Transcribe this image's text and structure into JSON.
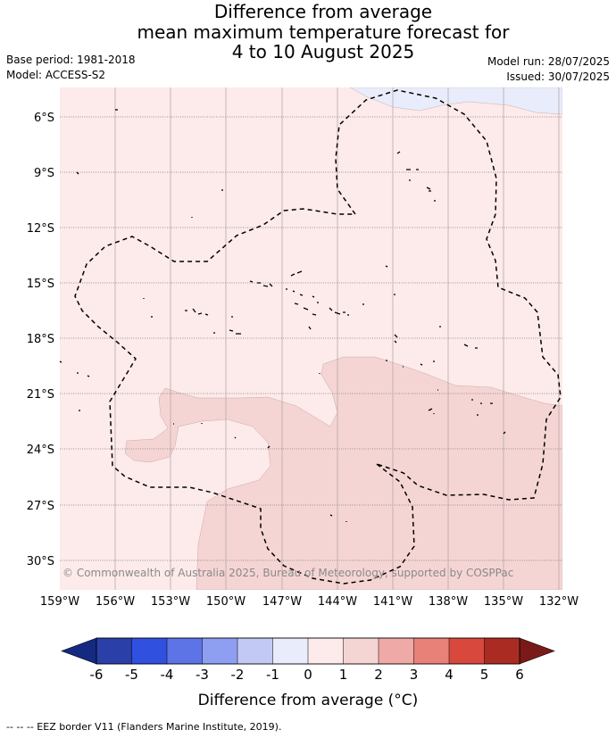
{
  "title": {
    "line1": "Difference from average",
    "line2": "mean maximum temperature forecast for",
    "line3": "4 to 10 August 2025"
  },
  "meta": {
    "base_period": "Base period: 1981-2018",
    "model": "Model: ACCESS-S2",
    "model_run": "Model run: 28/07/2025",
    "issued": "Issued: 30/07/2025"
  },
  "map": {
    "latitude_labels": [
      "6°S",
      "9°S",
      "12°S",
      "15°S",
      "18°S",
      "21°S",
      "24°S",
      "27°S",
      "30°S"
    ],
    "longitude_labels": [
      "159°W",
      "156°W",
      "153°W",
      "150°W",
      "147°W",
      "144°W",
      "141°W",
      "138°W",
      "135°W",
      "132°W"
    ],
    "copyright": "© Commonwealth of Australia 2025, Bureau of Meteorology, supported by COSPPac",
    "colors": {
      "zero_to_one": "#fcebea",
      "one_to_two": "#f5d5d4",
      "minus_one_to_zero": "#e8ecfb",
      "eez_border": "#000000"
    }
  },
  "colorbar": {
    "ticks": [
      "-6",
      "-5",
      "-4",
      "-3",
      "-2",
      "-1",
      "0",
      "1",
      "2",
      "3",
      "4",
      "5",
      "6"
    ],
    "colors": [
      "#2a3fa8",
      "#3050e0",
      "#5c74e6",
      "#8e9ef0",
      "#c3c9f5",
      "#e8ecfb",
      "#fcebea",
      "#f5d5d4",
      "#efa9a6",
      "#e88177",
      "#d9483d",
      "#aa2b22"
    ],
    "under_color": "#142a80",
    "over_color": "#7a1a18",
    "title": "Difference from average (°C)"
  },
  "footnote": "-- -- -- EEZ border V11 (Flanders Marine Institute, 2019)."
}
